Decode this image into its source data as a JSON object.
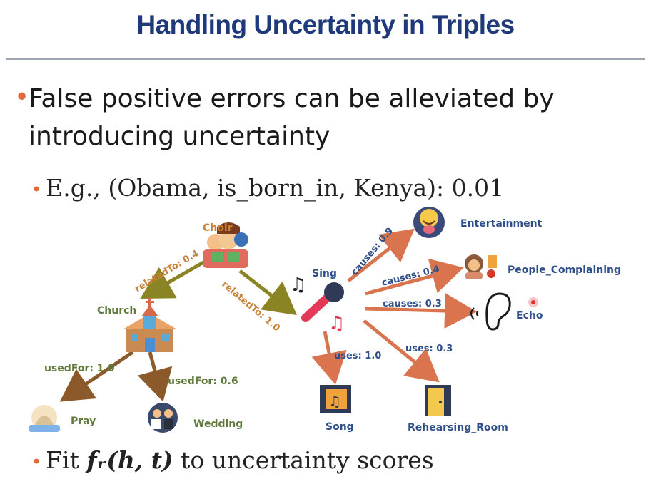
{
  "slide": {
    "title": "Handling Uncertainty in Triples",
    "bullet1": "False positive errors can be alleviated by introducing uncertainty",
    "sub1": "E.g., (Obama, is_born_in, Kenya): 0.01",
    "sub2_prefix": "Fit ",
    "sub2_math": "fᵣ(h, t)",
    "sub2_suffix": " to uncertainty scores"
  },
  "nodes": {
    "choir": "Choir",
    "church": "Church",
    "sing": "Sing",
    "pray": "Pray",
    "wedding": "Wedding",
    "song": "Song",
    "rehearsing_room": "Rehearsing_Room",
    "entertainment": "Entertainment",
    "people_complaining": "People_Complaining",
    "echo": "Echo"
  },
  "edges": {
    "choir_church": "relatedTo: 0.4",
    "choir_sing": "relatedTo: 1.0",
    "church_pray": "usedFor: 1.0",
    "church_wedding": "usedFor: 0.6",
    "sing_entertainment": "causes: 0.9",
    "sing_people": "causes: 0.4",
    "sing_echo": "causes: 0.3",
    "sing_song": "uses: 1.0",
    "sing_room": "uses: 0.3"
  },
  "icons": [
    "choir-icon",
    "church-icon",
    "microphone-icon",
    "praying-hands-icon",
    "wedding-couple-icon",
    "song-icon",
    "door-icon",
    "smiley-face-icon",
    "complaining-person-icon",
    "ear-icon"
  ],
  "colors": {
    "title": "#1f3a7a",
    "bullet": "#e0693c",
    "related_edge": "#8a8424",
    "church_edge": "#8c5a2a",
    "sing_edge": "#d9744e",
    "related_label": "#c9813a",
    "church_label": "#5f7a3c",
    "sing_label": "#2f4f8a"
  }
}
